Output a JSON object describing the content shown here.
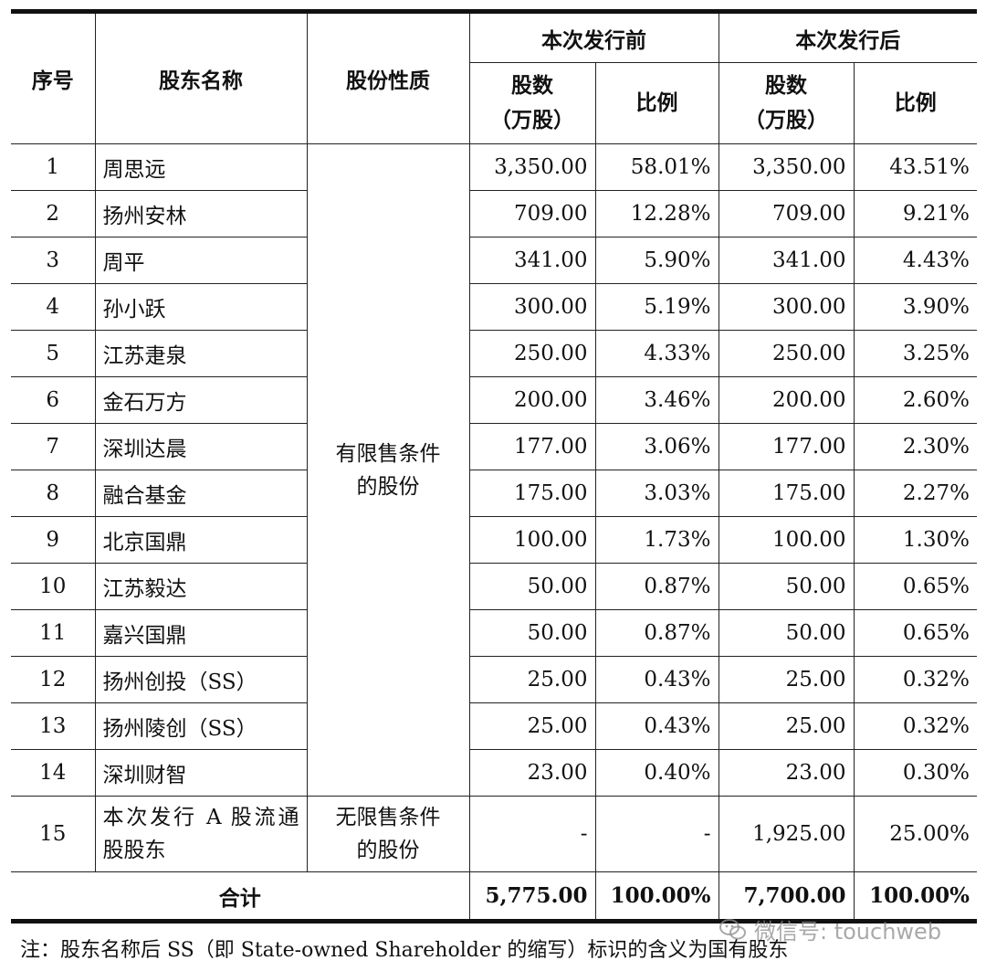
{
  "table": {
    "headers": {
      "seq": "序号",
      "name": "股东名称",
      "nature": "股份性质",
      "before": "本次发行前",
      "after": "本次发行后",
      "shares_line1": "股数",
      "shares_line2": "（万股）",
      "ratio": "比例"
    },
    "restricted_label_line1": "有限售条件",
    "restricted_label_line2": "的股份",
    "rows": [
      {
        "seq": "1",
        "name": "周思远",
        "before_shares": "3,350.00",
        "before_ratio": "58.01%",
        "after_shares": "3,350.00",
        "after_ratio": "43.51%"
      },
      {
        "seq": "2",
        "name": "扬州安林",
        "before_shares": "709.00",
        "before_ratio": "12.28%",
        "after_shares": "709.00",
        "after_ratio": "9.21%"
      },
      {
        "seq": "3",
        "name": "周平",
        "before_shares": "341.00",
        "before_ratio": "5.90%",
        "after_shares": "341.00",
        "after_ratio": "4.43%"
      },
      {
        "seq": "4",
        "name": "孙小跃",
        "before_shares": "300.00",
        "before_ratio": "5.19%",
        "after_shares": "300.00",
        "after_ratio": "3.90%"
      },
      {
        "seq": "5",
        "name": "江苏疌泉",
        "before_shares": "250.00",
        "before_ratio": "4.33%",
        "after_shares": "250.00",
        "after_ratio": "3.25%"
      },
      {
        "seq": "6",
        "name": "金石万方",
        "before_shares": "200.00",
        "before_ratio": "3.46%",
        "after_shares": "200.00",
        "after_ratio": "2.60%"
      },
      {
        "seq": "7",
        "name": "深圳达晨",
        "before_shares": "177.00",
        "before_ratio": "3.06%",
        "after_shares": "177.00",
        "after_ratio": "2.30%"
      },
      {
        "seq": "8",
        "name": "融合基金",
        "before_shares": "175.00",
        "before_ratio": "3.03%",
        "after_shares": "175.00",
        "after_ratio": "2.27%"
      },
      {
        "seq": "9",
        "name": "北京国鼎",
        "before_shares": "100.00",
        "before_ratio": "1.73%",
        "after_shares": "100.00",
        "after_ratio": "1.30%"
      },
      {
        "seq": "10",
        "name": "江苏毅达",
        "before_shares": "50.00",
        "before_ratio": "0.87%",
        "after_shares": "50.00",
        "after_ratio": "0.65%"
      },
      {
        "seq": "11",
        "name": "嘉兴国鼎",
        "before_shares": "50.00",
        "before_ratio": "0.87%",
        "after_shares": "50.00",
        "after_ratio": "0.65%"
      },
      {
        "seq": "12",
        "name": "扬州创投（SS）",
        "before_shares": "25.00",
        "before_ratio": "0.43%",
        "after_shares": "25.00",
        "after_ratio": "0.32%"
      },
      {
        "seq": "13",
        "name": "扬州陵创（SS）",
        "before_shares": "25.00",
        "before_ratio": "0.43%",
        "after_shares": "25.00",
        "after_ratio": "0.32%"
      },
      {
        "seq": "14",
        "name": "深圳财智",
        "before_shares": "23.00",
        "before_ratio": "0.40%",
        "after_shares": "23.00",
        "after_ratio": "0.30%"
      }
    ],
    "row15": {
      "seq": "15",
      "name": "本次发行 A 股流通股股东",
      "nature_line1": "无限售条件",
      "nature_line2": "的股份",
      "before_shares": "-",
      "before_ratio": "-",
      "after_shares": "1,925.00",
      "after_ratio": "25.00%"
    },
    "total": {
      "label": "合计",
      "before_shares": "5,775.00",
      "before_ratio": "100.00%",
      "after_shares": "7,700.00",
      "after_ratio": "100.00%"
    }
  },
  "note": "注：股东名称后 SS（即 State-owned Shareholder 的缩写）标识的含义为国有股东",
  "watermark": "微信号: touchweb"
}
